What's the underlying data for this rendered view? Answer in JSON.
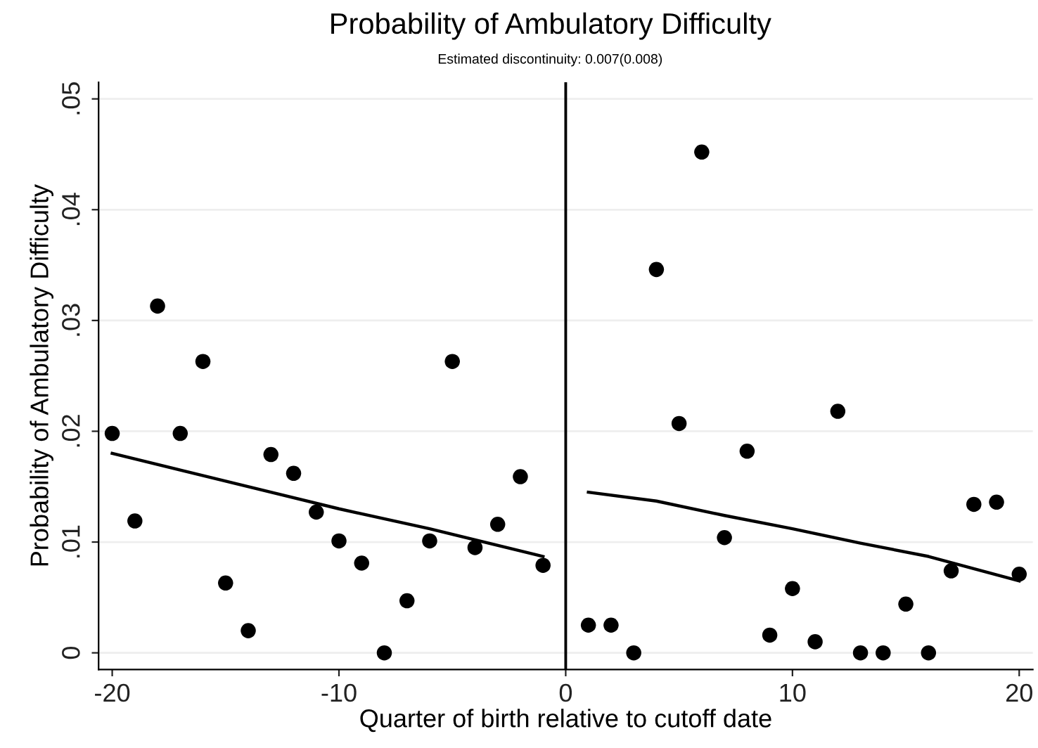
{
  "chart_data": {
    "type": "scatter",
    "title": "Probability of Ambulatory Difficulty",
    "subtitle": "Estimated discontinuity: 0.007(0.008)",
    "xlabel": "Quarter of birth relative to cutoff date",
    "ylabel": "Probability of Ambulatory Difficulty",
    "series": [
      {
        "color": "#000000",
        "marker": "circle",
        "x": [
          -20,
          -19,
          -18,
          -17,
          -16,
          -15,
          -14,
          -13,
          -12,
          -11,
          -10,
          -9,
          -8,
          -7,
          -6,
          -5,
          -4,
          -3,
          -2,
          -1,
          1,
          2,
          3,
          4,
          5,
          6,
          7,
          8,
          9,
          10,
          11,
          12,
          13,
          14,
          15,
          16,
          17,
          18,
          19,
          20
        ],
        "values": [
          0.0198,
          0.0119,
          0.0313,
          0.0198,
          0.0263,
          0.0063,
          0.002,
          0.0179,
          0.0162,
          0.0127,
          0.0101,
          0.0081,
          0.0,
          0.0047,
          0.0101,
          0.0263,
          0.0095,
          0.0116,
          0.0159,
          0.0079,
          0.0025,
          0.0025,
          0.0,
          0.0346,
          0.0207,
          0.0452,
          0.0104,
          0.0182,
          0.0016,
          0.0058,
          0.001,
          0.0218,
          0.0,
          0.0,
          0.0044,
          0.0,
          0.0074,
          0.0134,
          0.0136,
          0.0071
        ]
      },
      {
        "type": "line",
        "color": "#000000",
        "x": [
          -20,
          -17,
          -13,
          -10,
          -6,
          -1
        ],
        "values": [
          0.018,
          0.0165,
          0.0145,
          0.013,
          0.0112,
          0.0087
        ]
      },
      {
        "type": "line",
        "color": "#000000",
        "x": [
          1,
          4,
          7,
          10,
          13,
          16,
          20
        ],
        "values": [
          0.0145,
          0.0137,
          0.0124,
          0.0112,
          0.0099,
          0.0087,
          0.0065
        ]
      }
    ],
    "xlim": [
      -20.6,
      20.6
    ],
    "ylim": [
      -0.0015,
      0.0515
    ],
    "xticks": [
      -20,
      -10,
      0,
      10,
      20
    ],
    "yticks": [
      {
        "value": 0,
        "label": "0"
      },
      {
        "value": 0.01,
        "label": ".01"
      },
      {
        "value": 0.02,
        "label": ".02"
      },
      {
        "value": 0.03,
        "label": ".03"
      },
      {
        "value": 0.04,
        "label": ".04"
      },
      {
        "value": 0.05,
        "label": ".05"
      }
    ],
    "grid": "y",
    "ref_lines": [
      {
        "axis": "x",
        "value": 0,
        "color": "#000000"
      }
    ]
  }
}
